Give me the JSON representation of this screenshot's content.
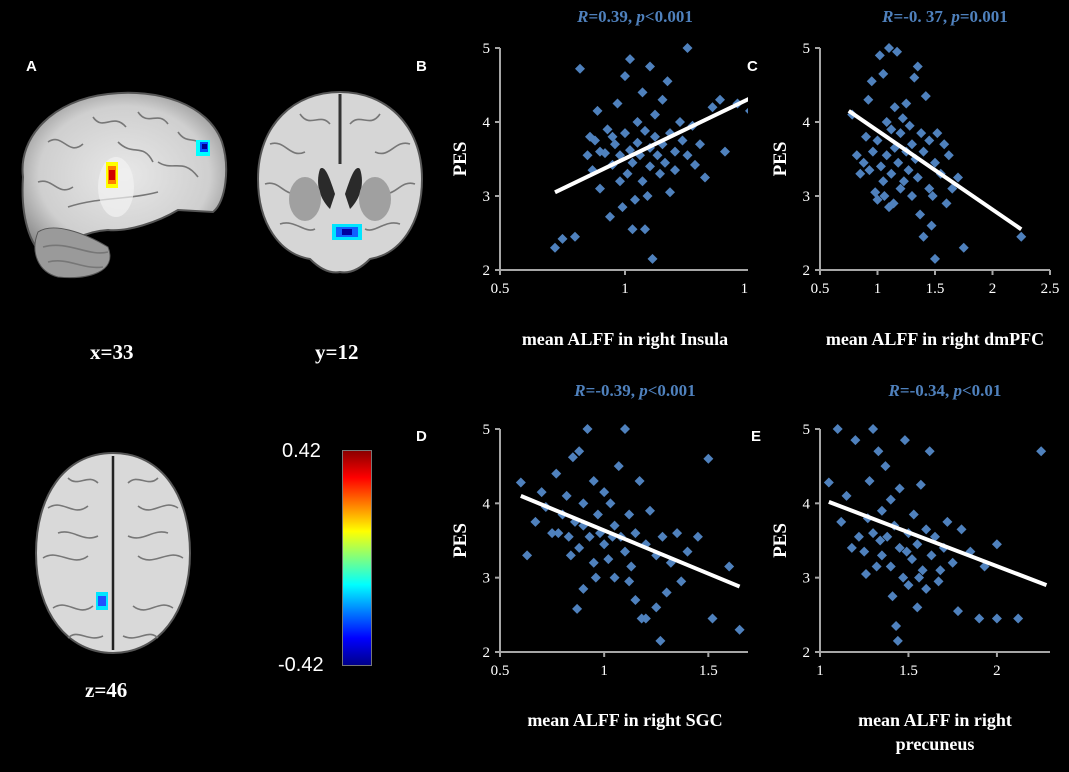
{
  "panels": {
    "A": "A",
    "B": "B",
    "C": "C",
    "D": "D",
    "E": "E"
  },
  "brain_labels": {
    "sagittal": "x=33",
    "coronal": "y=12",
    "axial": "z=46"
  },
  "colorbar": {
    "max": "0.42",
    "min": "-0.42",
    "colors": [
      "#8b0000",
      "#ff0000",
      "#ff7f00",
      "#ffff00",
      "#7fff7f",
      "#00ffff",
      "#007fff",
      "#0000ff",
      "#00008b"
    ]
  },
  "chart_data": [
    {
      "id": "B",
      "type": "scatter",
      "stat_r_label": "R",
      "stat_r_value": "=0.39,",
      "stat_p_label": "p",
      "stat_p_value": "<0.001",
      "ylabel": "PES",
      "xlabel": "mean ALFF in right Insula",
      "xlim": [
        0.5,
        1.5
      ],
      "ylim": [
        2,
        5
      ],
      "xticks": [
        "0.5",
        "1",
        "1.5"
      ],
      "yticks": [
        "2",
        "3",
        "4",
        "5"
      ],
      "fit": [
        [
          0.72,
          3.05
        ],
        [
          1.5,
          4.32
        ]
      ],
      "points": [
        [
          0.72,
          2.3
        ],
        [
          0.75,
          2.42
        ],
        [
          0.8,
          2.45
        ],
        [
          0.82,
          4.72
        ],
        [
          0.85,
          3.55
        ],
        [
          0.87,
          3.35
        ],
        [
          0.88,
          3.75
        ],
        [
          0.9,
          3.6
        ],
        [
          0.9,
          3.1
        ],
        [
          0.92,
          3.58
        ],
        [
          0.93,
          3.9
        ],
        [
          0.94,
          2.72
        ],
        [
          0.95,
          3.42
        ],
        [
          0.96,
          3.7
        ],
        [
          0.97,
          4.25
        ],
        [
          0.98,
          3.55
        ],
        [
          0.98,
          3.2
        ],
        [
          1.0,
          4.62
        ],
        [
          1.0,
          3.85
        ],
        [
          1.01,
          3.3
        ],
        [
          1.02,
          4.85
        ],
        [
          1.02,
          3.62
        ],
        [
          1.03,
          3.45
        ],
        [
          1.04,
          2.95
        ],
        [
          1.05,
          4.0
        ],
        [
          1.05,
          3.72
        ],
        [
          1.06,
          3.55
        ],
        [
          1.07,
          4.4
        ],
        [
          1.07,
          3.2
        ],
        [
          1.08,
          3.88
        ],
        [
          1.08,
          2.55
        ],
        [
          1.1,
          4.75
        ],
        [
          1.1,
          3.65
        ],
        [
          1.1,
          3.4
        ],
        [
          1.11,
          2.15
        ],
        [
          1.12,
          4.1
        ],
        [
          1.12,
          3.8
        ],
        [
          1.13,
          3.55
        ],
        [
          1.14,
          3.3
        ],
        [
          1.15,
          4.3
        ],
        [
          1.15,
          3.7
        ],
        [
          1.16,
          3.45
        ],
        [
          1.17,
          4.55
        ],
        [
          1.18,
          3.85
        ],
        [
          1.18,
          3.05
        ],
        [
          1.2,
          3.6
        ],
        [
          1.2,
          3.35
        ],
        [
          1.22,
          4.0
        ],
        [
          1.23,
          3.75
        ],
        [
          1.25,
          3.55
        ],
        [
          1.25,
          5.0
        ],
        [
          1.27,
          3.95
        ],
        [
          1.28,
          3.42
        ],
        [
          1.3,
          3.7
        ],
        [
          1.32,
          3.25
        ],
        [
          1.35,
          4.2
        ],
        [
          1.38,
          4.3
        ],
        [
          1.4,
          3.6
        ],
        [
          1.45,
          4.25
        ],
        [
          1.5,
          4.15
        ],
        [
          0.86,
          3.8
        ],
        [
          0.89,
          4.15
        ],
        [
          0.99,
          2.85
        ],
        [
          1.09,
          3.0
        ],
        [
          1.03,
          2.55
        ],
        [
          0.95,
          3.8
        ]
      ]
    },
    {
      "id": "C",
      "type": "scatter",
      "stat_r_label": "R",
      "stat_r_value": "=-0. 37,",
      "stat_p_label": "p",
      "stat_p_value": "=0.001",
      "ylabel": "PES",
      "xlabel": "mean ALFF in right dmPFC",
      "xlim": [
        0.5,
        2.5
      ],
      "ylim": [
        2,
        5
      ],
      "xticks": [
        "0.5",
        "1",
        "1.5",
        "2",
        "2.5"
      ],
      "yticks": [
        "2",
        "3",
        "4",
        "5"
      ],
      "fit": [
        [
          0.75,
          4.15
        ],
        [
          2.25,
          2.55
        ]
      ],
      "points": [
        [
          0.78,
          4.1
        ],
        [
          0.82,
          3.55
        ],
        [
          0.85,
          3.3
        ],
        [
          0.88,
          3.45
        ],
        [
          0.9,
          3.8
        ],
        [
          0.92,
          4.3
        ],
        [
          0.95,
          4.55
        ],
        [
          0.96,
          3.6
        ],
        [
          0.98,
          3.05
        ],
        [
          1.0,
          3.75
        ],
        [
          1.0,
          2.95
        ],
        [
          1.02,
          4.9
        ],
        [
          1.03,
          3.4
        ],
        [
          1.05,
          3.2
        ],
        [
          1.05,
          4.65
        ],
        [
          1.08,
          4.0
        ],
        [
          1.08,
          3.55
        ],
        [
          1.1,
          2.85
        ],
        [
          1.1,
          5.0
        ],
        [
          1.12,
          3.9
        ],
        [
          1.12,
          3.3
        ],
        [
          1.15,
          4.2
        ],
        [
          1.15,
          3.65
        ],
        [
          1.17,
          4.95
        ],
        [
          1.18,
          3.45
        ],
        [
          1.2,
          3.1
        ],
        [
          1.2,
          3.85
        ],
        [
          1.22,
          4.05
        ],
        [
          1.25,
          3.6
        ],
        [
          1.25,
          4.25
        ],
        [
          1.27,
          3.35
        ],
        [
          1.28,
          3.95
        ],
        [
          1.3,
          3.7
        ],
        [
          1.3,
          3.0
        ],
        [
          1.32,
          4.6
        ],
        [
          1.33,
          3.5
        ],
        [
          1.35,
          3.25
        ],
        [
          1.35,
          4.75
        ],
        [
          1.38,
          3.85
        ],
        [
          1.4,
          2.45
        ],
        [
          1.4,
          3.6
        ],
        [
          1.42,
          4.35
        ],
        [
          1.45,
          3.1
        ],
        [
          1.45,
          3.75
        ],
        [
          1.47,
          2.6
        ],
        [
          1.5,
          3.45
        ],
        [
          1.5,
          2.15
        ],
        [
          1.52,
          3.85
        ],
        [
          1.55,
          3.3
        ],
        [
          1.58,
          3.7
        ],
        [
          1.6,
          2.9
        ],
        [
          1.62,
          3.55
        ],
        [
          1.65,
          3.1
        ],
        [
          1.7,
          3.25
        ],
        [
          1.75,
          2.3
        ],
        [
          2.25,
          2.45
        ],
        [
          0.93,
          3.35
        ],
        [
          1.06,
          3.0
        ],
        [
          1.14,
          2.9
        ],
        [
          1.23,
          3.2
        ],
        [
          1.37,
          2.75
        ],
        [
          1.48,
          3.0
        ]
      ]
    },
    {
      "id": "D",
      "type": "scatter",
      "stat_r_label": "R",
      "stat_r_value": "=-0.39,",
      "stat_p_label": "p",
      "stat_p_value": "<0.001",
      "ylabel": "PES",
      "xlabel": "mean ALFF in right SGC",
      "xlim": [
        0.5,
        1.7
      ],
      "ylim": [
        2,
        5
      ],
      "xticks": [
        "0.5",
        "1",
        "1.5"
      ],
      "yticks": [
        "2",
        "3",
        "4",
        "5"
      ],
      "fit": [
        [
          0.6,
          4.1
        ],
        [
          1.65,
          2.88
        ]
      ],
      "points": [
        [
          0.6,
          4.28
        ],
        [
          0.63,
          3.3
        ],
        [
          0.67,
          3.75
        ],
        [
          0.7,
          4.15
        ],
        [
          0.72,
          3.95
        ],
        [
          0.75,
          3.6
        ],
        [
          0.77,
          4.4
        ],
        [
          0.8,
          3.85
        ],
        [
          0.82,
          4.1
        ],
        [
          0.83,
          3.55
        ],
        [
          0.85,
          4.62
        ],
        [
          0.86,
          3.75
        ],
        [
          0.87,
          2.58
        ],
        [
          0.88,
          3.4
        ],
        [
          0.9,
          4.0
        ],
        [
          0.9,
          3.7
        ],
        [
          0.9,
          2.85
        ],
        [
          0.92,
          5.0
        ],
        [
          0.93,
          3.55
        ],
        [
          0.95,
          4.3
        ],
        [
          0.95,
          3.2
        ],
        [
          0.97,
          3.85
        ],
        [
          0.98,
          3.6
        ],
        [
          1.0,
          4.15
        ],
        [
          1.0,
          3.45
        ],
        [
          1.02,
          3.25
        ],
        [
          1.03,
          4.0
        ],
        [
          1.05,
          3.7
        ],
        [
          1.05,
          3.0
        ],
        [
          1.07,
          4.5
        ],
        [
          1.08,
          3.55
        ],
        [
          1.1,
          5.0
        ],
        [
          1.1,
          3.35
        ],
        [
          1.12,
          3.85
        ],
        [
          1.13,
          3.15
        ],
        [
          1.15,
          3.6
        ],
        [
          1.15,
          2.7
        ],
        [
          1.17,
          4.3
        ],
        [
          1.18,
          2.45
        ],
        [
          1.2,
          3.45
        ],
        [
          1.2,
          2.45
        ],
        [
          1.22,
          3.9
        ],
        [
          1.25,
          3.3
        ],
        [
          1.27,
          2.15
        ],
        [
          1.28,
          3.55
        ],
        [
          1.3,
          2.8
        ],
        [
          1.32,
          3.2
        ],
        [
          1.35,
          3.6
        ],
        [
          1.37,
          2.95
        ],
        [
          1.4,
          3.35
        ],
        [
          1.45,
          3.55
        ],
        [
          1.5,
          4.6
        ],
        [
          1.52,
          2.45
        ],
        [
          1.6,
          3.15
        ],
        [
          1.65,
          2.3
        ],
        [
          0.78,
          3.6
        ],
        [
          0.84,
          3.3
        ],
        [
          0.96,
          3.0
        ],
        [
          1.04,
          3.55
        ],
        [
          1.12,
          2.95
        ],
        [
          1.25,
          2.6
        ],
        [
          0.88,
          4.7
        ]
      ]
    },
    {
      "id": "E",
      "type": "scatter",
      "stat_r_label": "R",
      "stat_r_value": "=-0.34,",
      "stat_p_label": "p",
      "stat_p_value": "<0.01",
      "ylabel": "PES",
      "xlabel": "mean ALFF in right precuneus",
      "xlim": [
        1,
        2.3
      ],
      "ylim": [
        2,
        5
      ],
      "xticks": [
        "1",
        "1.5",
        "2"
      ],
      "yticks": [
        "2",
        "3",
        "4",
        "5"
      ],
      "fit": [
        [
          1.05,
          4.02
        ],
        [
          2.28,
          2.9
        ]
      ],
      "points": [
        [
          1.05,
          4.28
        ],
        [
          1.1,
          5.0
        ],
        [
          1.12,
          3.75
        ],
        [
          1.15,
          4.1
        ],
        [
          1.2,
          4.85
        ],
        [
          1.22,
          3.55
        ],
        [
          1.25,
          3.35
        ],
        [
          1.27,
          3.8
        ],
        [
          1.28,
          4.3
        ],
        [
          1.3,
          3.6
        ],
        [
          1.3,
          5.0
        ],
        [
          1.32,
          3.15
        ],
        [
          1.33,
          4.7
        ],
        [
          1.35,
          3.9
        ],
        [
          1.35,
          3.3
        ],
        [
          1.37,
          4.5
        ],
        [
          1.38,
          3.55
        ],
        [
          1.4,
          3.15
        ],
        [
          1.4,
          4.05
        ],
        [
          1.42,
          3.7
        ],
        [
          1.43,
          2.35
        ],
        [
          1.44,
          2.15
        ],
        [
          1.45,
          4.2
        ],
        [
          1.45,
          3.4
        ],
        [
          1.47,
          3.0
        ],
        [
          1.48,
          4.85
        ],
        [
          1.5,
          3.6
        ],
        [
          1.5,
          2.9
        ],
        [
          1.52,
          3.25
        ],
        [
          1.53,
          3.85
        ],
        [
          1.55,
          3.45
        ],
        [
          1.55,
          2.6
        ],
        [
          1.57,
          4.25
        ],
        [
          1.58,
          3.1
        ],
        [
          1.6,
          3.65
        ],
        [
          1.6,
          2.85
        ],
        [
          1.62,
          4.7
        ],
        [
          1.63,
          3.3
        ],
        [
          1.65,
          3.55
        ],
        [
          1.67,
          2.95
        ],
        [
          1.7,
          3.4
        ],
        [
          1.72,
          3.75
        ],
        [
          1.75,
          3.2
        ],
        [
          1.78,
          2.55
        ],
        [
          1.8,
          3.65
        ],
        [
          1.85,
          3.35
        ],
        [
          1.9,
          2.45
        ],
        [
          1.93,
          3.15
        ],
        [
          2.0,
          2.45
        ],
        [
          2.0,
          3.45
        ],
        [
          2.12,
          2.45
        ],
        [
          2.25,
          4.7
        ],
        [
          1.18,
          3.4
        ],
        [
          1.26,
          3.05
        ],
        [
          1.34,
          3.5
        ],
        [
          1.41,
          2.75
        ],
        [
          1.49,
          3.35
        ],
        [
          1.56,
          3.0
        ],
        [
          1.68,
          3.1
        ]
      ]
    }
  ]
}
